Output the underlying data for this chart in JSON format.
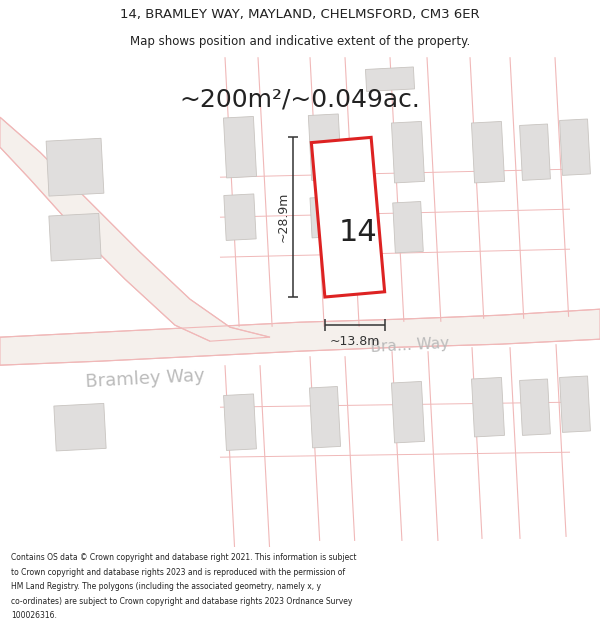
{
  "title_line1": "14, BRAMLEY WAY, MAYLAND, CHELMSFORD, CM3 6ER",
  "title_line2": "Map shows position and indicative extent of the property.",
  "area_label": "~200m²/~0.049ac.",
  "house_number": "14",
  "dim_height": "~28.9m",
  "dim_width": "~13.8m",
  "road_name_1": "Bramley Way",
  "road_name_2": "Bra… Way",
  "footer_lines": [
    "Contains OS data © Crown copyright and database right 2021. This information is subject",
    "to Crown copyright and database rights 2023 and is reproduced with the permission of",
    "HM Land Registry. The polygons (including the associated geometry, namely x, y",
    "co-ordinates) are subject to Crown copyright and database rights 2023 Ordnance Survey",
    "100026316."
  ],
  "bg_color": "#ffffff",
  "map_bg": "#ffffff",
  "road_line_color": "#f0b8b8",
  "road_fill_color": "#f5f0ec",
  "highlight_color": "#dd2222",
  "building_fill": "#e0dedd",
  "building_edge": "#c8c4c0",
  "dim_color": "#333333",
  "text_color": "#222222",
  "road_label_color": "#bbbbbb",
  "title_fontsize": 9.5,
  "subtitle_fontsize": 8.5,
  "area_fontsize": 18,
  "footer_fontsize": 5.5
}
